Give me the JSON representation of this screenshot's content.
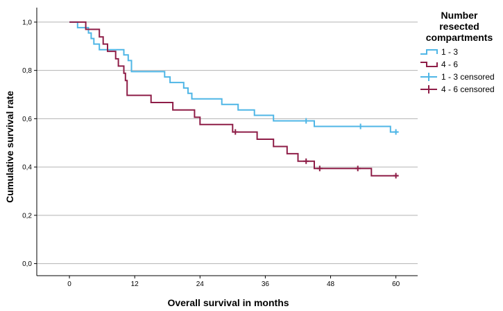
{
  "chart_data": {
    "type": "line",
    "subtype": "kaplan-meier-step",
    "title": "",
    "xlabel": "Overall survival in months",
    "ylabel": "Cumulative survival rate",
    "xlim": [
      -6,
      64
    ],
    "ylim": [
      -0.05,
      1.06
    ],
    "xticks": [
      0,
      12,
      24,
      36,
      48,
      60
    ],
    "yticks": [
      0.0,
      0.2,
      0.4,
      0.6,
      0.8,
      1.0
    ],
    "xtick_labels": [
      "0",
      "12",
      "24",
      "36",
      "48",
      "60"
    ],
    "ytick_labels": [
      "0,0",
      "0,2",
      "0,4",
      "0,6",
      "0,8",
      "1,0"
    ],
    "grid": "horizontal",
    "legend": {
      "title": "Number resected compartments",
      "title_lines": [
        "Number",
        "resected",
        "compartments"
      ],
      "placement": "top-right",
      "entries": [
        "1 - 3",
        "4 - 6",
        "1 - 3 censored",
        "4 - 6 censored"
      ]
    },
    "series": [
      {
        "name": "1 - 3",
        "color": "#4fb6e6",
        "steps": [
          [
            0,
            1.0
          ],
          [
            1.5,
            0.977
          ],
          [
            3.5,
            0.955
          ],
          [
            4.0,
            0.932
          ],
          [
            4.5,
            0.909
          ],
          [
            5.5,
            0.886
          ],
          [
            7.5,
            0.886
          ],
          [
            10.0,
            0.864
          ],
          [
            10.8,
            0.841
          ],
          [
            11.4,
            0.795
          ],
          [
            16.0,
            0.795
          ],
          [
            17.5,
            0.773
          ],
          [
            18.5,
            0.75
          ],
          [
            21.0,
            0.727
          ],
          [
            21.8,
            0.705
          ],
          [
            22.5,
            0.682
          ],
          [
            28.0,
            0.659
          ],
          [
            31.0,
            0.636
          ],
          [
            34.0,
            0.614
          ],
          [
            37.5,
            0.591
          ],
          [
            43.5,
            0.591
          ],
          [
            45.0,
            0.568
          ],
          [
            59.0,
            0.545
          ],
          [
            60.5,
            0.545
          ]
        ],
        "censored": [
          [
            43.5,
            0.591
          ],
          [
            53.5,
            0.568
          ],
          [
            60.0,
            0.545
          ]
        ]
      },
      {
        "name": "4 - 6",
        "color": "#8e1d47",
        "steps": [
          [
            0,
            1.0
          ],
          [
            3.0,
            0.97
          ],
          [
            5.5,
            0.939
          ],
          [
            6.2,
            0.909
          ],
          [
            7.0,
            0.879
          ],
          [
            8.5,
            0.848
          ],
          [
            9.0,
            0.818
          ],
          [
            10.0,
            0.788
          ],
          [
            10.3,
            0.758
          ],
          [
            10.6,
            0.697
          ],
          [
            15.0,
            0.667
          ],
          [
            19.0,
            0.636
          ],
          [
            23.0,
            0.606
          ],
          [
            24.0,
            0.576
          ],
          [
            30.0,
            0.545
          ],
          [
            34.5,
            0.515
          ],
          [
            37.5,
            0.485
          ],
          [
            40.0,
            0.455
          ],
          [
            42.0,
            0.424
          ],
          [
            45.0,
            0.394
          ],
          [
            55.5,
            0.364
          ],
          [
            60.5,
            0.364
          ]
        ],
        "censored": [
          [
            30.5,
            0.545
          ],
          [
            43.5,
            0.424
          ],
          [
            46.0,
            0.394
          ],
          [
            53.0,
            0.394
          ],
          [
            60.0,
            0.364
          ]
        ]
      }
    ]
  }
}
